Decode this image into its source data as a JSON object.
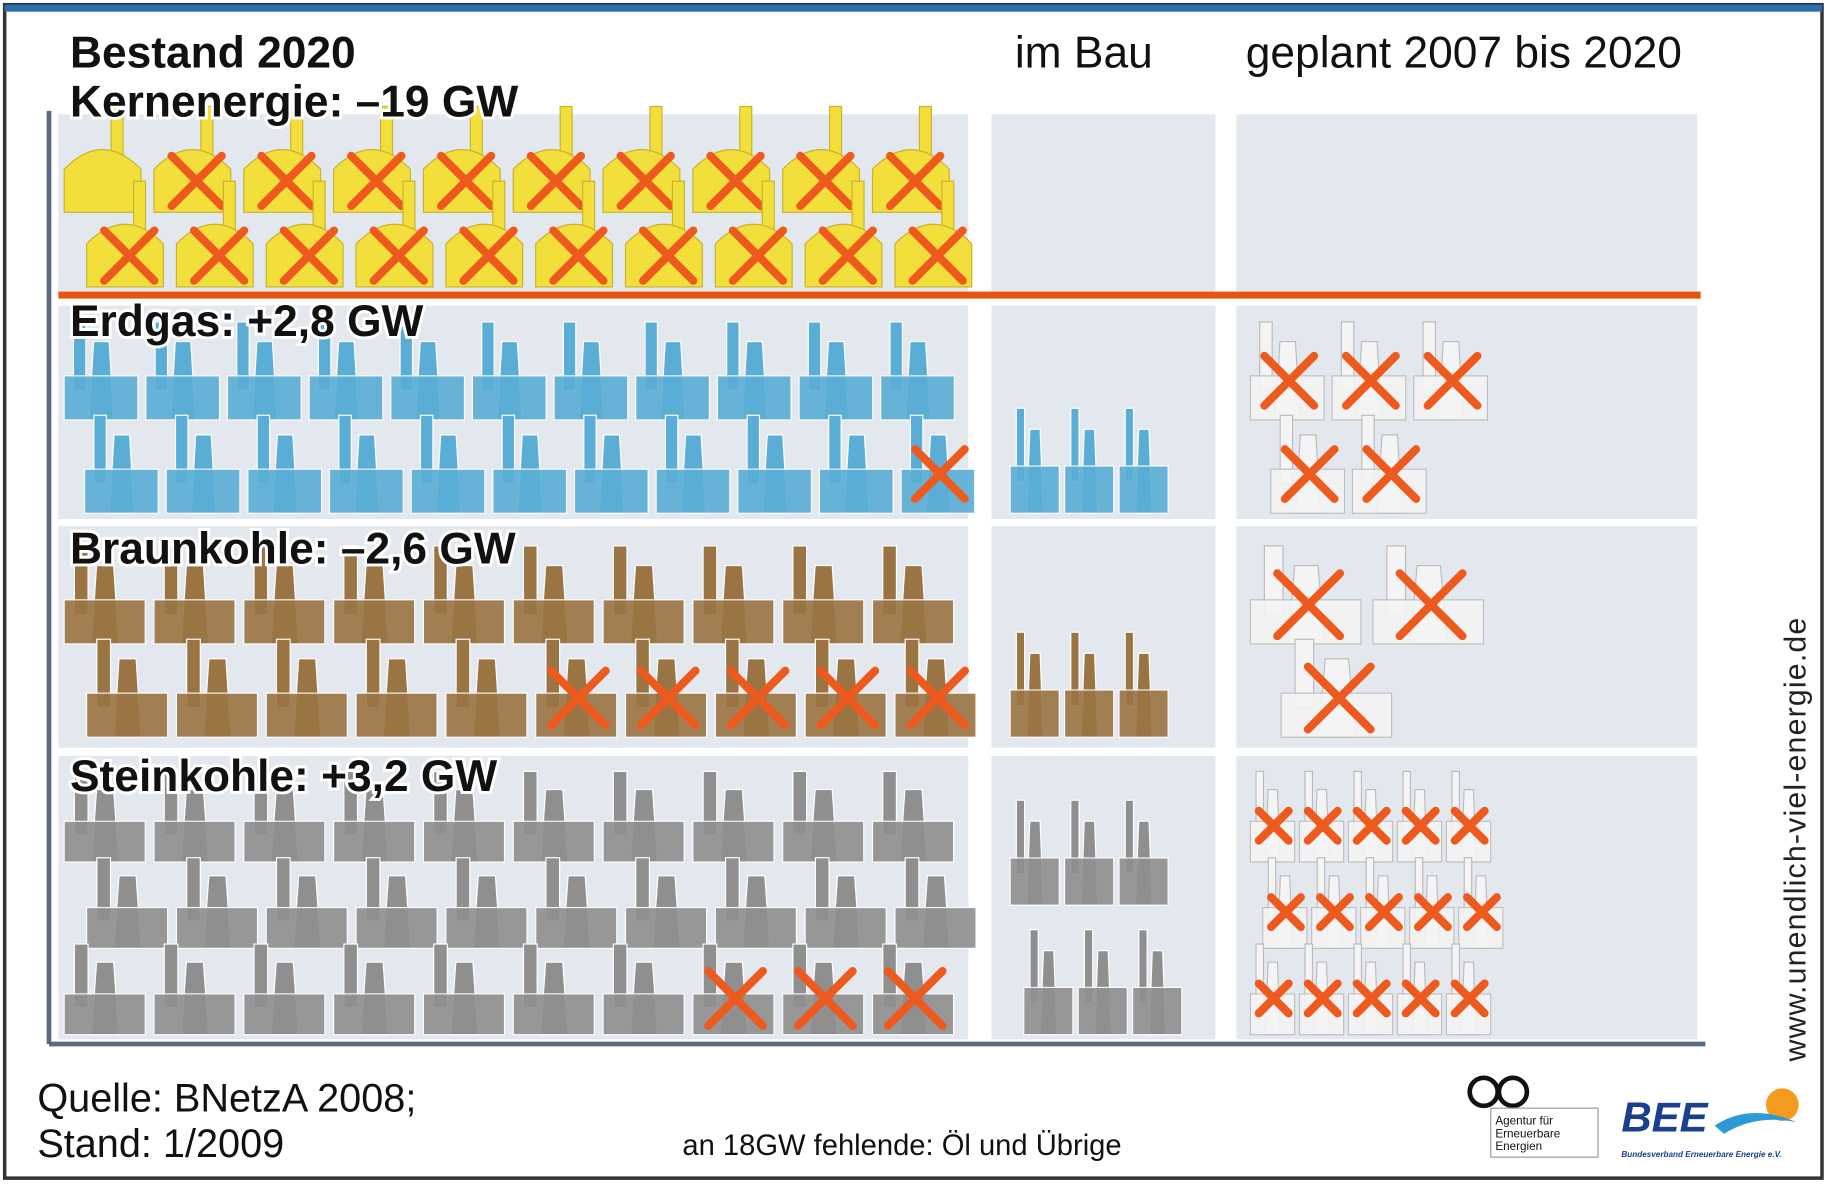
{
  "header": {
    "stock": "Bestand 2020",
    "build": "im Bau",
    "planned": "geplant 2007 bis 2020"
  },
  "rows": [
    {
      "label": "Kernenergie: –19 GW",
      "color": "#f2df3c",
      "stock": {
        "count": 20,
        "crossed": 19
      }
    },
    {
      "label": "Erdgas: +2,8 GW",
      "color": "#5aaed6",
      "stock": {
        "count": 22,
        "crossed": 1
      },
      "build": {
        "count": 3
      },
      "planned": {
        "count": 5,
        "crossed": 5
      }
    },
    {
      "label": "Braunkohle: –2,6 GW",
      "color": "#9a7443",
      "stock": {
        "count": 20,
        "crossed": 5
      },
      "build": {
        "count": 3
      },
      "planned": {
        "count": 3,
        "crossed": 3
      }
    },
    {
      "label": "Steinkohle: +3,2 GW",
      "color": "#8f8f8f",
      "stock": {
        "count": 30,
        "crossed": 3
      },
      "build": {
        "count": 6
      },
      "planned": {
        "count": 15,
        "crossed": 15
      }
    }
  ],
  "footer": {
    "source": "Quelle: BNetzA 2008;",
    "date": "Stand: 1/2009",
    "note": "an 18GW fehlende: Öl und Übrige"
  },
  "website": "www.unendlich-viel-energie.de",
  "logos": {
    "aee": [
      "Agentur für",
      "Erneuerbare",
      "Energien"
    ],
    "bee": "BEE",
    "bee_sub": "Bundesverband Erneuerbare Energie e.V."
  }
}
